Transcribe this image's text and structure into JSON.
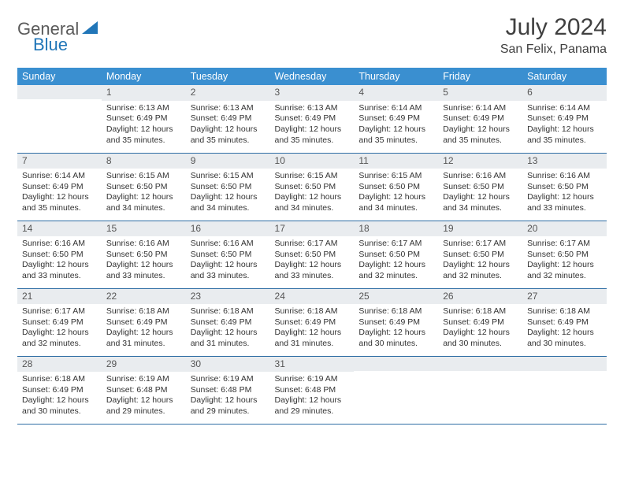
{
  "logo": {
    "text1": "General",
    "text2": "Blue",
    "shape_color": "#2176b8",
    "text1_color": "#5a5a5a"
  },
  "title": "July 2024",
  "location": "San Felix, Panama",
  "colors": {
    "header_bg": "#3a8fd0",
    "header_text": "#ffffff",
    "daynum_bg": "#e9ecef",
    "row_border": "#2e6da4",
    "body_text": "#333333"
  },
  "day_headers": [
    "Sunday",
    "Monday",
    "Tuesday",
    "Wednesday",
    "Thursday",
    "Friday",
    "Saturday"
  ],
  "weeks": [
    [
      {
        "num": "",
        "sunrise": "",
        "sunset": "",
        "daylight": ""
      },
      {
        "num": "1",
        "sunrise": "Sunrise: 6:13 AM",
        "sunset": "Sunset: 6:49 PM",
        "daylight": "Daylight: 12 hours and 35 minutes."
      },
      {
        "num": "2",
        "sunrise": "Sunrise: 6:13 AM",
        "sunset": "Sunset: 6:49 PM",
        "daylight": "Daylight: 12 hours and 35 minutes."
      },
      {
        "num": "3",
        "sunrise": "Sunrise: 6:13 AM",
        "sunset": "Sunset: 6:49 PM",
        "daylight": "Daylight: 12 hours and 35 minutes."
      },
      {
        "num": "4",
        "sunrise": "Sunrise: 6:14 AM",
        "sunset": "Sunset: 6:49 PM",
        "daylight": "Daylight: 12 hours and 35 minutes."
      },
      {
        "num": "5",
        "sunrise": "Sunrise: 6:14 AM",
        "sunset": "Sunset: 6:49 PM",
        "daylight": "Daylight: 12 hours and 35 minutes."
      },
      {
        "num": "6",
        "sunrise": "Sunrise: 6:14 AM",
        "sunset": "Sunset: 6:49 PM",
        "daylight": "Daylight: 12 hours and 35 minutes."
      }
    ],
    [
      {
        "num": "7",
        "sunrise": "Sunrise: 6:14 AM",
        "sunset": "Sunset: 6:49 PM",
        "daylight": "Daylight: 12 hours and 35 minutes."
      },
      {
        "num": "8",
        "sunrise": "Sunrise: 6:15 AM",
        "sunset": "Sunset: 6:50 PM",
        "daylight": "Daylight: 12 hours and 34 minutes."
      },
      {
        "num": "9",
        "sunrise": "Sunrise: 6:15 AM",
        "sunset": "Sunset: 6:50 PM",
        "daylight": "Daylight: 12 hours and 34 minutes."
      },
      {
        "num": "10",
        "sunrise": "Sunrise: 6:15 AM",
        "sunset": "Sunset: 6:50 PM",
        "daylight": "Daylight: 12 hours and 34 minutes."
      },
      {
        "num": "11",
        "sunrise": "Sunrise: 6:15 AM",
        "sunset": "Sunset: 6:50 PM",
        "daylight": "Daylight: 12 hours and 34 minutes."
      },
      {
        "num": "12",
        "sunrise": "Sunrise: 6:16 AM",
        "sunset": "Sunset: 6:50 PM",
        "daylight": "Daylight: 12 hours and 34 minutes."
      },
      {
        "num": "13",
        "sunrise": "Sunrise: 6:16 AM",
        "sunset": "Sunset: 6:50 PM",
        "daylight": "Daylight: 12 hours and 33 minutes."
      }
    ],
    [
      {
        "num": "14",
        "sunrise": "Sunrise: 6:16 AM",
        "sunset": "Sunset: 6:50 PM",
        "daylight": "Daylight: 12 hours and 33 minutes."
      },
      {
        "num": "15",
        "sunrise": "Sunrise: 6:16 AM",
        "sunset": "Sunset: 6:50 PM",
        "daylight": "Daylight: 12 hours and 33 minutes."
      },
      {
        "num": "16",
        "sunrise": "Sunrise: 6:16 AM",
        "sunset": "Sunset: 6:50 PM",
        "daylight": "Daylight: 12 hours and 33 minutes."
      },
      {
        "num": "17",
        "sunrise": "Sunrise: 6:17 AM",
        "sunset": "Sunset: 6:50 PM",
        "daylight": "Daylight: 12 hours and 33 minutes."
      },
      {
        "num": "18",
        "sunrise": "Sunrise: 6:17 AM",
        "sunset": "Sunset: 6:50 PM",
        "daylight": "Daylight: 12 hours and 32 minutes."
      },
      {
        "num": "19",
        "sunrise": "Sunrise: 6:17 AM",
        "sunset": "Sunset: 6:50 PM",
        "daylight": "Daylight: 12 hours and 32 minutes."
      },
      {
        "num": "20",
        "sunrise": "Sunrise: 6:17 AM",
        "sunset": "Sunset: 6:50 PM",
        "daylight": "Daylight: 12 hours and 32 minutes."
      }
    ],
    [
      {
        "num": "21",
        "sunrise": "Sunrise: 6:17 AM",
        "sunset": "Sunset: 6:49 PM",
        "daylight": "Daylight: 12 hours and 32 minutes."
      },
      {
        "num": "22",
        "sunrise": "Sunrise: 6:18 AM",
        "sunset": "Sunset: 6:49 PM",
        "daylight": "Daylight: 12 hours and 31 minutes."
      },
      {
        "num": "23",
        "sunrise": "Sunrise: 6:18 AM",
        "sunset": "Sunset: 6:49 PM",
        "daylight": "Daylight: 12 hours and 31 minutes."
      },
      {
        "num": "24",
        "sunrise": "Sunrise: 6:18 AM",
        "sunset": "Sunset: 6:49 PM",
        "daylight": "Daylight: 12 hours and 31 minutes."
      },
      {
        "num": "25",
        "sunrise": "Sunrise: 6:18 AM",
        "sunset": "Sunset: 6:49 PM",
        "daylight": "Daylight: 12 hours and 30 minutes."
      },
      {
        "num": "26",
        "sunrise": "Sunrise: 6:18 AM",
        "sunset": "Sunset: 6:49 PM",
        "daylight": "Daylight: 12 hours and 30 minutes."
      },
      {
        "num": "27",
        "sunrise": "Sunrise: 6:18 AM",
        "sunset": "Sunset: 6:49 PM",
        "daylight": "Daylight: 12 hours and 30 minutes."
      }
    ],
    [
      {
        "num": "28",
        "sunrise": "Sunrise: 6:18 AM",
        "sunset": "Sunset: 6:49 PM",
        "daylight": "Daylight: 12 hours and 30 minutes."
      },
      {
        "num": "29",
        "sunrise": "Sunrise: 6:19 AM",
        "sunset": "Sunset: 6:48 PM",
        "daylight": "Daylight: 12 hours and 29 minutes."
      },
      {
        "num": "30",
        "sunrise": "Sunrise: 6:19 AM",
        "sunset": "Sunset: 6:48 PM",
        "daylight": "Daylight: 12 hours and 29 minutes."
      },
      {
        "num": "31",
        "sunrise": "Sunrise: 6:19 AM",
        "sunset": "Sunset: 6:48 PM",
        "daylight": "Daylight: 12 hours and 29 minutes."
      },
      {
        "num": "",
        "sunrise": "",
        "sunset": "",
        "daylight": ""
      },
      {
        "num": "",
        "sunrise": "",
        "sunset": "",
        "daylight": ""
      },
      {
        "num": "",
        "sunrise": "",
        "sunset": "",
        "daylight": ""
      }
    ]
  ]
}
